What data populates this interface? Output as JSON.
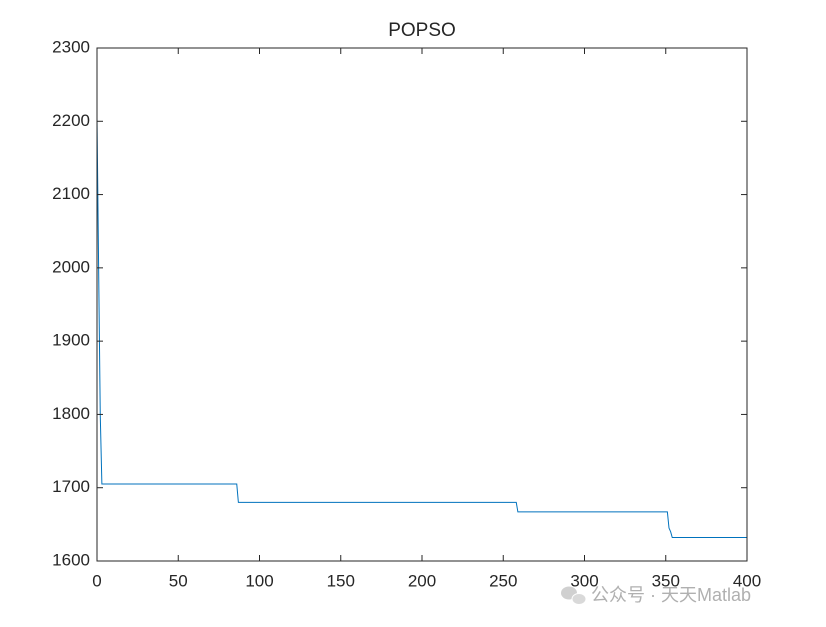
{
  "chart_data": {
    "type": "line",
    "title": "POPSO",
    "x": [
      0,
      1,
      2,
      3,
      86,
      87,
      258,
      259,
      351,
      352,
      353,
      354,
      400
    ],
    "values": [
      2205,
      2000,
      1800,
      1705,
      1705,
      1680,
      1680,
      1667,
      1667,
      1645,
      1640,
      1632,
      1632
    ],
    "color": "#0072bd",
    "xlim": [
      0,
      400
    ],
    "xticks": [
      0,
      50,
      100,
      150,
      200,
      250,
      300,
      350,
      400
    ],
    "ylim": [
      1600,
      2300
    ],
    "yticks": [
      1600,
      1700,
      1800,
      1900,
      2000,
      2100,
      2200,
      2300
    ],
    "grid": false,
    "watermark": "公众号 · 天天Matlab"
  }
}
